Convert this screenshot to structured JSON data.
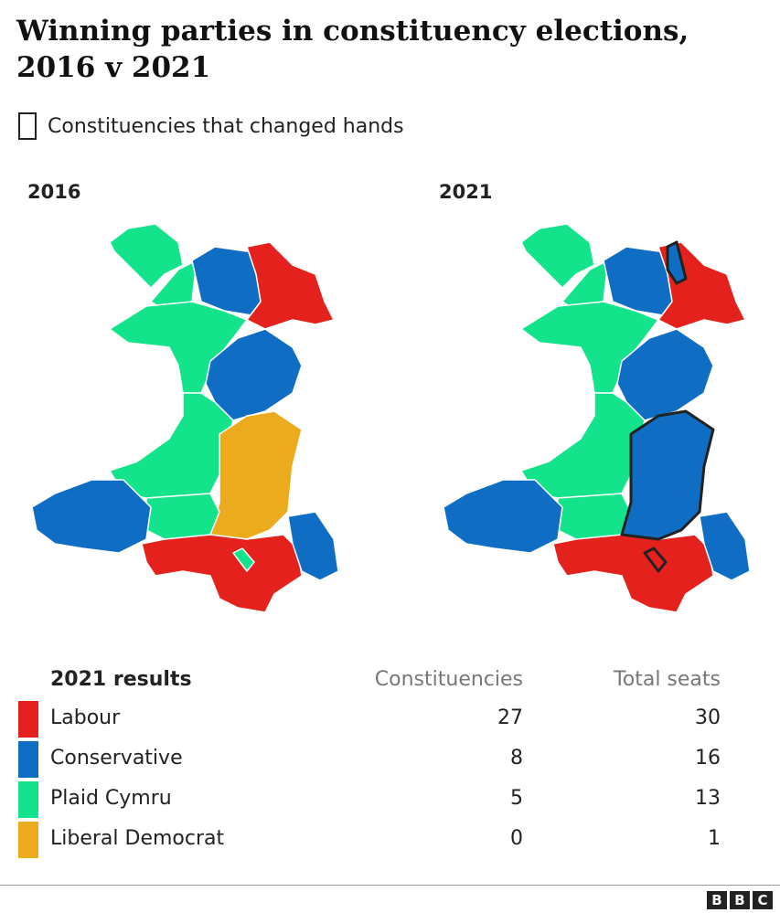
{
  "header": {
    "title": "Winning parties in constituency elections, 2016 v 2021",
    "legend_note": "Constituencies that changed hands"
  },
  "maps": [
    {
      "label": "2016"
    },
    {
      "label": "2021"
    }
  ],
  "table": {
    "columns": [
      "2021 results",
      "Constituencies",
      "Total seats"
    ],
    "rows": [
      {
        "party": "Labour",
        "color": "#e4211c",
        "constituencies": 27,
        "total_seats": 30
      },
      {
        "party": "Conservative",
        "color": "#0f6ec3",
        "constituencies": 8,
        "total_seats": 16
      },
      {
        "party": "Plaid Cymru",
        "color": "#13e38b",
        "constituencies": 5,
        "total_seats": 13
      },
      {
        "party": "Liberal Democrat",
        "color": "#ecab1d",
        "constituencies": 0,
        "total_seats": 1
      }
    ]
  },
  "footer": {
    "logo": [
      "B",
      "B",
      "C"
    ]
  }
}
